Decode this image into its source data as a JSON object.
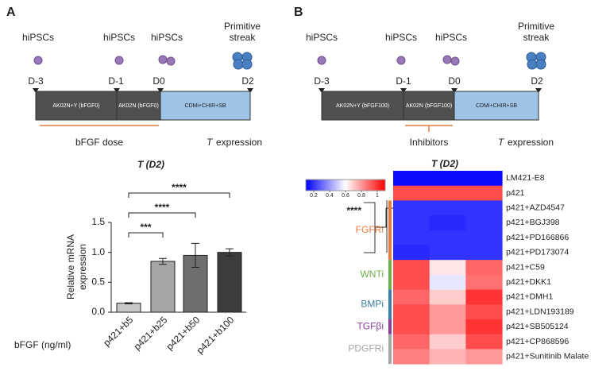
{
  "panels": [
    {
      "label": "A",
      "stages": [
        "hiPSCs",
        "hiPSCs",
        "hiPSCs",
        [
          "Primitive",
          "streak"
        ]
      ],
      "days": [
        "D-3",
        "D-1",
        "D0",
        "D2"
      ],
      "segments": [
        "AK02N+Y (bFGF0)",
        "AK02N (bFGF0)",
        "CDMi+CHIR+SB"
      ],
      "bracket": "bFGF dose",
      "readout": [
        "T",
        "expression"
      ]
    },
    {
      "label": "B",
      "stages": [
        "hiPSCs",
        "hiPSCs",
        "hiPSCs",
        [
          "Primitive",
          "streak"
        ]
      ],
      "days": [
        "D-3",
        "D-1",
        "D0",
        "D2"
      ],
      "segments": [
        "AK02N+Y (bFGF100)",
        "AK02N (bFGF100)",
        "CDMi+CHIR+SB"
      ],
      "bracket": "Inhibitors",
      "readout": [
        "T",
        "expression"
      ]
    }
  ],
  "chart_data": [
    {
      "type": "bar",
      "title": "T (D2)",
      "categories": [
        "p421+b5",
        "p421+b25",
        "p421+b50",
        "p421+b100"
      ],
      "values": [
        0.15,
        0.85,
        0.95,
        1.0
      ],
      "errors": [
        0.01,
        0.05,
        0.2,
        0.06
      ],
      "colors": [
        "#c8c8c8",
        "#a6a6a6",
        "#6e6e6e",
        "#3c3c3c"
      ],
      "ylabel": [
        "Relative mRNA",
        "expression"
      ],
      "xlabel": "bFGF (ng/ml)",
      "ylim": [
        0,
        1.5
      ],
      "yticks": [
        {
          "value": 0,
          "label": "0.0"
        },
        {
          "value": 0.5,
          "label": "0.5"
        },
        {
          "value": 1,
          "label": "1.0"
        },
        {
          "value": 1.5,
          "label": "1.5"
        }
      ],
      "significance": [
        {
          "from": 0,
          "to": 1,
          "label": "***"
        },
        {
          "from": 0,
          "to": 2,
          "label": "****"
        },
        {
          "from": 0,
          "to": 3,
          "label": "****"
        }
      ]
    },
    {
      "type": "heatmap",
      "title": "T (D2)",
      "rows": [
        "LM421-E8",
        "p421",
        "p421+AZD4547",
        "p421+BGJ398",
        "p421+PD166866",
        "p421+PD173074",
        "p421+C59",
        "p421+DKK1",
        "p421+DMH1",
        "p421+LDN193189",
        "p421+SB505124",
        "p421+CP868596",
        "p421+Sunitinib Malate"
      ],
      "values": [
        [
          0.12,
          0.12,
          0.12
        ],
        [
          0.95,
          0.95,
          0.95
        ],
        [
          0.2,
          0.2,
          0.2
        ],
        [
          0.2,
          0.18,
          0.2
        ],
        [
          0.2,
          0.2,
          0.2
        ],
        [
          0.18,
          0.2,
          0.2
        ],
        [
          0.95,
          0.65,
          0.9
        ],
        [
          0.95,
          0.55,
          0.88
        ],
        [
          0.9,
          0.7,
          1.0
        ],
        [
          0.95,
          0.8,
          0.95
        ],
        [
          0.95,
          0.8,
          1.0
        ],
        [
          0.9,
          0.7,
          0.95
        ],
        [
          0.85,
          0.75,
          0.8
        ]
      ],
      "colorbar": {
        "lim": [
          0.1,
          1.1
        ],
        "ticks": [
          0.2,
          0.4,
          0.6,
          0.8,
          1
        ]
      },
      "significance": "****",
      "groups": [
        {
          "name": "FGFRi",
          "color": "#ee7d3b",
          "rows": [
            2,
            5
          ]
        },
        {
          "name": "WNTi",
          "color": "#70ad47",
          "rows": [
            6,
            7
          ]
        },
        {
          "name": "BMPi",
          "color": "#3b7ea6",
          "rows": [
            8,
            9
          ]
        },
        {
          "name": "TGFβi",
          "color": "#8e3fa0",
          "rows": [
            10,
            10
          ]
        },
        {
          "name": "PDGFRi",
          "color": "#a6a6a6",
          "rows": [
            11,
            12
          ]
        }
      ]
    }
  ]
}
